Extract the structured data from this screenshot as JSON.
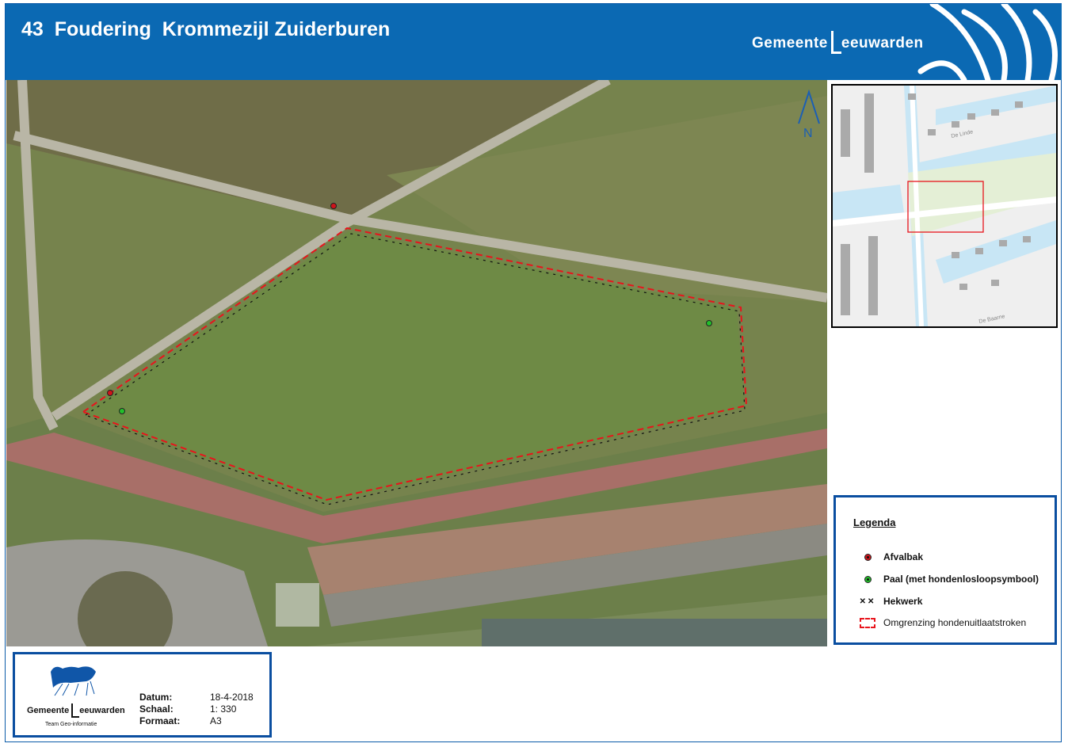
{
  "header": {
    "title": "43  Foudering  Krommezijl Zuiderburen",
    "brand_prefix": "Gemeente",
    "brand_name": "eeuwarden",
    "brand_color": "#0b69b3"
  },
  "map": {
    "north_label": "N",
    "fence_color": "#111111",
    "boundary_color": "#e8141c"
  },
  "inset": {
    "streets": [
      "De Linde",
      "De Baarne"
    ],
    "extent_color": "#e8141c"
  },
  "legend": {
    "title": "Legenda",
    "items": [
      {
        "label": "Afvalbak",
        "icon": "red-dot",
        "color": "#d0131a"
      },
      {
        "label": "Paal (met hondenlosloopsymbool)",
        "icon": "green-dot",
        "color": "#22c02a"
      },
      {
        "label": "Hekwerk",
        "icon": "cross-line"
      },
      {
        "label": "Omgrenzing hondenuitlaatstroken",
        "icon": "red-dashed-box"
      }
    ]
  },
  "footer": {
    "org_prefix": "Gemeente",
    "org_name": "eeuwarden",
    "team": "Team Geo-informatie",
    "meta": [
      {
        "key": "Datum:",
        "value": "18-4-2018"
      },
      {
        "key": "Schaal:",
        "value": "1: 330"
      },
      {
        "key": "Formaat:",
        "value": "A3"
      }
    ]
  }
}
